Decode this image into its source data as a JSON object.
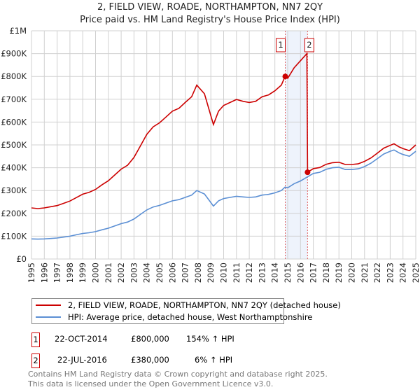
{
  "title": "2, FIELD VIEW, ROADE, NORTHAMPTON, NN7 2QY",
  "subtitle": "Price paid vs. HM Land Registry's House Price Index (HPI)",
  "colors": {
    "property": "#cc0000",
    "hpi": "#5b8fd4",
    "shade": "#eef3fc"
  },
  "chart_data": {
    "type": "line",
    "title": "Price paid vs. HM Land Registry's House Price Index (HPI)",
    "xlim": [
      1995,
      2025
    ],
    "ylim": [
      0,
      1000000
    ],
    "grid": true,
    "x_ticks": [
      "1995",
      "1996",
      "1997",
      "1998",
      "1999",
      "2000",
      "2001",
      "2002",
      "2003",
      "2004",
      "2005",
      "2006",
      "2007",
      "2008",
      "2009",
      "2010",
      "2011",
      "2012",
      "2013",
      "2014",
      "2015",
      "2016",
      "2017",
      "2018",
      "2019",
      "2020",
      "2021",
      "2022",
      "2023",
      "2024",
      "2025"
    ],
    "y_ticks": [
      {
        "v": 0,
        "label": "£0"
      },
      {
        "v": 100000,
        "label": "£100K"
      },
      {
        "v": 200000,
        "label": "£200K"
      },
      {
        "v": 300000,
        "label": "£300K"
      },
      {
        "v": 400000,
        "label": "£400K"
      },
      {
        "v": 500000,
        "label": "£500K"
      },
      {
        "v": 600000,
        "label": "£600K"
      },
      {
        "v": 700000,
        "label": "£700K"
      },
      {
        "v": 800000,
        "label": "£800K"
      },
      {
        "v": 900000,
        "label": "£900K"
      },
      {
        "v": 1000000,
        "label": "£1M"
      }
    ],
    "series": [
      {
        "name": "2, FIELD VIEW, ROADE, NORTHAMPTON, NN7 2QY (detached house)",
        "color": "#cc0000",
        "x": [
          1995,
          1995.5,
          1996,
          1996.5,
          1997,
          1997.5,
          1998,
          1998.5,
          1999,
          1999.5,
          2000,
          2000.5,
          2001,
          2001.5,
          2002,
          2002.5,
          2003,
          2003.5,
          2004,
          2004.5,
          2005,
          2005.5,
          2006,
          2006.5,
          2007,
          2007.5,
          2007.9,
          2008.5,
          2009.2,
          2009.6,
          2010,
          2010.5,
          2011,
          2011.5,
          2012,
          2012.5,
          2013,
          2013.5,
          2014,
          2014.5,
          2014.8,
          2015,
          2015.5,
          2016,
          2016.5,
          2016.55,
          2017,
          2017.5,
          2018,
          2018.5,
          2019,
          2019.5,
          2020,
          2020.5,
          2021,
          2021.5,
          2022,
          2022.5,
          2023,
          2023.3,
          2023.7,
          2024,
          2024.5,
          2025
        ],
        "y": [
          224000,
          221000,
          224000,
          229000,
          234000,
          244000,
          254000,
          269000,
          284000,
          292000,
          305000,
          325000,
          343000,
          368000,
          394000,
          411000,
          445000,
          495000,
          546000,
          579000,
          597000,
          622000,
          648000,
          660000,
          686000,
          711000,
          762000,
          724000,
          589000,
          648000,
          673000,
          686000,
          699000,
          691000,
          686000,
          691000,
          711000,
          719000,
          737000,
          762000,
          800000,
          792000,
          838000,
          869000,
          900000,
          380000,
          396000,
          401000,
          415000,
          422000,
          424000,
          414000,
          414000,
          417000,
          428000,
          443000,
          464000,
          486000,
          498000,
          505000,
          491000,
          484000,
          475000,
          500000
        ]
      },
      {
        "name": "HPI: Average price, detached house, West Northamptonshire",
        "color": "#5b8fd4",
        "x": [
          1995,
          1995.5,
          1996,
          1996.5,
          1997,
          1997.5,
          1998,
          1998.5,
          1999,
          1999.5,
          2000,
          2000.5,
          2001,
          2001.5,
          2002,
          2002.5,
          2003,
          2003.5,
          2004,
          2004.5,
          2005,
          2005.5,
          2006,
          2006.5,
          2007,
          2007.5,
          2007.9,
          2008.5,
          2009.2,
          2009.6,
          2010,
          2010.5,
          2011,
          2011.5,
          2012,
          2012.5,
          2013,
          2013.5,
          2014,
          2014.5,
          2014.8,
          2015,
          2015.5,
          2016,
          2016.55,
          2017,
          2017.5,
          2018,
          2018.5,
          2019,
          2019.5,
          2020,
          2020.5,
          2021,
          2021.5,
          2022,
          2022.5,
          2023,
          2023.3,
          2023.7,
          2024,
          2024.5,
          2025
        ],
        "y": [
          88000,
          87000,
          88000,
          90000,
          92000,
          96000,
          100000,
          106000,
          112000,
          115000,
          120000,
          128000,
          135000,
          145000,
          155000,
          162000,
          175000,
          195000,
          215000,
          228000,
          235000,
          245000,
          255000,
          260000,
          270000,
          280000,
          300000,
          285000,
          232000,
          255000,
          265000,
          270000,
          275000,
          272000,
          270000,
          272000,
          280000,
          283000,
          290000,
          300000,
          315000,
          312000,
          330000,
          342000,
          360000,
          375000,
          380000,
          393000,
          400000,
          402000,
          392000,
          392000,
          395000,
          405000,
          420000,
          440000,
          460000,
          472000,
          478000,
          465000,
          458000,
          450000,
          472000
        ]
      }
    ],
    "annotations": [
      {
        "label": "1",
        "x": 2014.81,
        "y": 800000
      },
      {
        "label": "2",
        "x": 2016.55,
        "y": 380000
      }
    ],
    "shaded_range": [
      2014.81,
      2016.55
    ]
  },
  "legend": {
    "property": "2, FIELD VIEW, ROADE, NORTHAMPTON, NN7 2QY (detached house)",
    "hpi": "HPI: Average price, detached house, West Northamptonshire"
  },
  "sales": [
    {
      "num": "1",
      "date": "22-OCT-2014",
      "price": "£800,000",
      "hpi": "154% ↑ HPI"
    },
    {
      "num": "2",
      "date": "22-JUL-2016",
      "price": "£380,000",
      "hpi": "6% ↑ HPI"
    }
  ],
  "footer": {
    "line1": "Contains HM Land Registry data © Crown copyright and database right 2025.",
    "line2": "This data is licensed under the Open Government Licence v3.0."
  }
}
